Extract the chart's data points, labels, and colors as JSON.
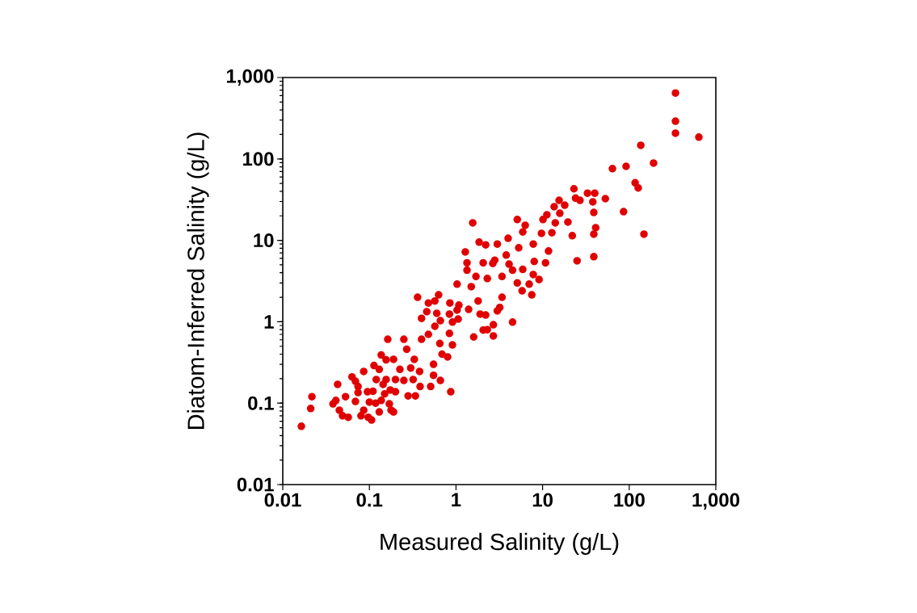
{
  "chart_data": {
    "type": "scatter",
    "xlabel": "Measured Salinity (g/L)",
    "ylabel": "Diatom-Inferred Salinity (g/L)",
    "log": "xy",
    "marker": "circle",
    "grid": false,
    "xlim": [
      0.01,
      1000
    ],
    "ylim": [
      0.01,
      1000
    ],
    "xticks": [
      0.01,
      0.1,
      1,
      10,
      100,
      {
        "value": 1000,
        "label": "1,000"
      }
    ],
    "yticks": [
      0.01,
      0.1,
      1,
      10,
      100,
      {
        "value": 1000,
        "label": "1,000"
      }
    ],
    "series": [
      {
        "color": "#e00000",
        "x": [
          0.0164,
          0.021,
          0.0217,
          342,
          342,
          342,
          637,
          136,
          191,
          64,
          92,
          117,
          127,
          148,
          86,
          53,
          38,
          40,
          33,
          39,
          41,
          39,
          39,
          24,
          27,
          18,
          23,
          25,
          22,
          19.6,
          15.8,
          14,
          12.8,
          10.1,
          9.7,
          11.7,
          10.8,
          7.8,
          8,
          6.3,
          5.9,
          9.1,
          7.8,
          7.0,
          7.5,
          4.0,
          5.1,
          4.1,
          4.5,
          5.3,
          5.1,
          5.8,
          3.8,
          3.0,
          2.8,
          3.4,
          3.4,
          3.2,
          2.3,
          2.2,
          2.06,
          1.56,
          1.28,
          1.34,
          1.34,
          1.7,
          1.5,
          1.4,
          1.03,
          1.03,
          0.91,
          1.06,
          1.08,
          1.8,
          1.9,
          2.2,
          2.3,
          2.7,
          2.7,
          2.06,
          1.6,
          3.0,
          4.5,
          5.9,
          0.63,
          0.57,
          0.6,
          0.84,
          0.85,
          0.66,
          0.48,
          0.36,
          0.46,
          0.4,
          0.57,
          0.48,
          0.4,
          0.65,
          0.69,
          0.84,
          0.91,
          0.8,
          0.55,
          0.87,
          0.66,
          0.55,
          0.51,
          0.33,
          0.3,
          0.27,
          0.25,
          0.32,
          0.38,
          0.385,
          0.34,
          0.28,
          0.225,
          0.2,
          0.19,
          0.25,
          0.156,
          0.13,
          0.156,
          0.174,
          0.2,
          0.144,
          0.12,
          0.11,
          0.1,
          0.118,
          0.137,
          0.15,
          0.17,
          0.13,
          0.178,
          0.19,
          0.095,
          0.086,
          0.097,
          0.08,
          0.106,
          0.069,
          0.074,
          0.069,
          0.074,
          0.053,
          0.057,
          0.049,
          0.045,
          0.041,
          0.043,
          0.038,
          0.063,
          0.086,
          0.113,
          0.137,
          0.163,
          1.85,
          2.66,
          15.5,
          13.6,
          11.2
        ],
        "values": [
          0.052,
          0.086,
          0.12,
          645,
          291,
          207,
          185,
          147,
          89,
          76,
          81,
          51,
          44,
          11.9,
          22.5,
          32.5,
          29.7,
          38,
          38,
          22,
          14.3,
          11.9,
          6.3,
          33,
          31,
          27,
          43,
          5.6,
          11.4,
          16.8,
          21.5,
          16.4,
          12.4,
          18,
          12.2,
          7.4,
          5.3,
          9.0,
          5.5,
          15.3,
          12.7,
          3.3,
          3.8,
          2.9,
          2.14,
          10.6,
          18,
          5.1,
          4.3,
          8.1,
          3.0,
          2.4,
          6.6,
          9.0,
          5.7,
          3.6,
          2.0,
          1.5,
          3.4,
          8.8,
          5.3,
          16.4,
          7.2,
          5.3,
          4.3,
          3.6,
          2.7,
          1.42,
          2.9,
          1.39,
          0.99,
          1.08,
          1.6,
          1.8,
          1.24,
          1.21,
          0.8,
          0.92,
          0.67,
          0.79,
          0.65,
          1.36,
          0.99,
          4.4,
          2.14,
          1.8,
          1.27,
          1.24,
          1.7,
          1.03,
          1.7,
          2.0,
          1.33,
          1.1,
          0.88,
          0.7,
          0.61,
          0.54,
          0.4,
          0.72,
          0.52,
          0.37,
          0.3,
          0.138,
          0.19,
          0.22,
          0.16,
          0.345,
          0.27,
          0.46,
          0.19,
          0.195,
          0.245,
          0.16,
          0.123,
          0.123,
          0.26,
          0.195,
          0.345,
          0.61,
          0.34,
          0.26,
          0.195,
          0.145,
          0.138,
          0.17,
          0.195,
          0.14,
          0.103,
          0.1,
          0.108,
          0.13,
          0.098,
          0.078,
          0.082,
          0.078,
          0.138,
          0.082,
          0.067,
          0.07,
          0.062,
          0.105,
          0.135,
          0.186,
          0.16,
          0.12,
          0.067,
          0.07,
          0.082,
          0.108,
          0.17,
          0.098,
          0.21,
          0.245,
          0.29,
          0.39,
          0.61,
          9.5,
          5.2,
          31,
          25.9,
          20.6
        ]
      }
    ]
  }
}
